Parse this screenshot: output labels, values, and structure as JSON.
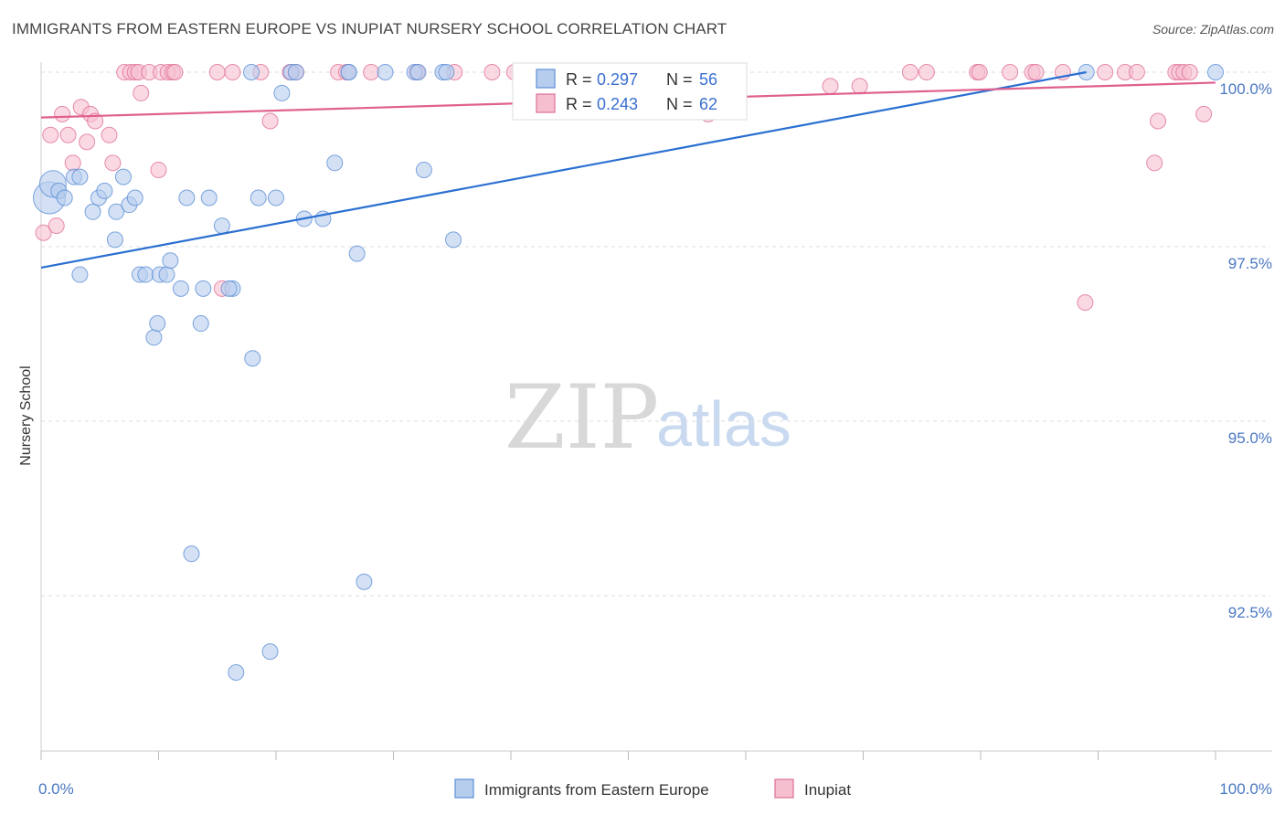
{
  "title": "IMMIGRANTS FROM EASTERN EUROPE VS INUPIAT NURSERY SCHOOL CORRELATION CHART",
  "source": "Source: ZipAtlas.com",
  "watermark": {
    "zip": "ZIP",
    "atlas": "atlas"
  },
  "colors": {
    "blue": "#5b8fd6",
    "blue_fill": "#b7cdee",
    "blue_line": "#2a6fd1",
    "pink": "#e07097",
    "pink_fill": "#f6bfd0",
    "pink_line": "#e0608e",
    "grid": "#dddddd",
    "axis_text": "#4a78c2"
  },
  "stats": [
    {
      "r_label": "R =",
      "r_value": "0.297",
      "n_label": "N =",
      "n_value": "56"
    },
    {
      "r_label": "R =",
      "r_value": "0.243",
      "n_label": "N =",
      "n_value": "62"
    }
  ],
  "chart_data": {
    "type": "scatter",
    "xlabel": "",
    "ylabel": "Nursery School",
    "xlim": [
      0,
      100
    ],
    "ylim": [
      91,
      100.4
    ],
    "x_tick_labels": [
      "0.0%",
      "100.0%"
    ],
    "y_ticks": [
      100.0,
      97.5,
      95.0,
      92.5
    ],
    "y_tick_labels": [
      "100.0%",
      "97.5%",
      "95.0%",
      "92.5%"
    ],
    "grid": true,
    "legend_position": "bottom",
    "series": [
      {
        "name": "Immigrants from Eastern Europe",
        "trendline": {
          "x": [
            0,
            89
          ],
          "y": [
            97.2,
            100.0
          ]
        },
        "points": [
          {
            "x": 0.7,
            "y": 98.2,
            "s": 3
          },
          {
            "x": 1.0,
            "y": 98.4,
            "s": 2
          },
          {
            "x": 1.5,
            "y": 98.3
          },
          {
            "x": 2.0,
            "y": 98.2
          },
          {
            "x": 2.8,
            "y": 98.5
          },
          {
            "x": 3.3,
            "y": 98.5
          },
          {
            "x": 4.4,
            "y": 98.0
          },
          {
            "x": 4.9,
            "y": 98.2
          },
          {
            "x": 5.4,
            "y": 98.3
          },
          {
            "x": 6.3,
            "y": 97.6
          },
          {
            "x": 6.4,
            "y": 98.0
          },
          {
            "x": 7.0,
            "y": 98.5
          },
          {
            "x": 7.5,
            "y": 98.1
          },
          {
            "x": 8.0,
            "y": 98.2
          },
          {
            "x": 3.3,
            "y": 97.1
          },
          {
            "x": 8.4,
            "y": 97.1
          },
          {
            "x": 8.9,
            "y": 97.1
          },
          {
            "x": 10.1,
            "y": 97.1
          },
          {
            "x": 10.7,
            "y": 97.1
          },
          {
            "x": 11.0,
            "y": 97.3
          },
          {
            "x": 11.9,
            "y": 96.9
          },
          {
            "x": 9.6,
            "y": 96.2
          },
          {
            "x": 9.9,
            "y": 96.4
          },
          {
            "x": 12.4,
            "y": 98.2
          },
          {
            "x": 13.6,
            "y": 96.4
          },
          {
            "x": 13.8,
            "y": 96.9
          },
          {
            "x": 14.3,
            "y": 98.2
          },
          {
            "x": 15.4,
            "y": 97.8
          },
          {
            "x": 16.3,
            "y": 96.9
          },
          {
            "x": 16.0,
            "y": 96.9
          },
          {
            "x": 18.0,
            "y": 95.9
          },
          {
            "x": 18.5,
            "y": 98.2
          },
          {
            "x": 20.0,
            "y": 98.2
          },
          {
            "x": 22.4,
            "y": 97.9
          },
          {
            "x": 24.0,
            "y": 97.9
          },
          {
            "x": 25.0,
            "y": 98.7
          },
          {
            "x": 26.9,
            "y": 97.4
          },
          {
            "x": 27.5,
            "y": 92.7
          },
          {
            "x": 12.8,
            "y": 93.1
          },
          {
            "x": 16.6,
            "y": 91.4
          },
          {
            "x": 19.5,
            "y": 91.7
          },
          {
            "x": 32.6,
            "y": 98.6
          },
          {
            "x": 35.1,
            "y": 97.6
          },
          {
            "x": 17.9,
            "y": 100.0
          },
          {
            "x": 20.5,
            "y": 99.7
          },
          {
            "x": 21.3,
            "y": 100.0
          },
          {
            "x": 21.7,
            "y": 100.0
          },
          {
            "x": 26.2,
            "y": 100.0
          },
          {
            "x": 26.2,
            "y": 100.0
          },
          {
            "x": 29.3,
            "y": 100.0
          },
          {
            "x": 31.8,
            "y": 100.0
          },
          {
            "x": 32.1,
            "y": 100.0
          },
          {
            "x": 34.2,
            "y": 100.0
          },
          {
            "x": 34.5,
            "y": 100.0
          },
          {
            "x": 89.0,
            "y": 100.0
          },
          {
            "x": 100.0,
            "y": 100.0
          }
        ]
      },
      {
        "name": "Inupiat",
        "trendline": {
          "x": [
            0,
            100
          ],
          "y": [
            99.35,
            99.85
          ]
        },
        "points": [
          {
            "x": 0.2,
            "y": 97.7
          },
          {
            "x": 1.3,
            "y": 97.8
          },
          {
            "x": 0.8,
            "y": 99.1
          },
          {
            "x": 1.8,
            "y": 99.4
          },
          {
            "x": 2.3,
            "y": 99.1
          },
          {
            "x": 2.7,
            "y": 98.7
          },
          {
            "x": 3.4,
            "y": 99.5
          },
          {
            "x": 3.9,
            "y": 99.0
          },
          {
            "x": 4.2,
            "y": 99.4
          },
          {
            "x": 4.6,
            "y": 99.3
          },
          {
            "x": 5.8,
            "y": 99.1
          },
          {
            "x": 6.1,
            "y": 98.7
          },
          {
            "x": 7.1,
            "y": 100.0
          },
          {
            "x": 7.6,
            "y": 100.0
          },
          {
            "x": 8.0,
            "y": 100.0
          },
          {
            "x": 8.3,
            "y": 100.0
          },
          {
            "x": 8.5,
            "y": 99.7
          },
          {
            "x": 9.2,
            "y": 100.0
          },
          {
            "x": 10.0,
            "y": 98.6
          },
          {
            "x": 10.2,
            "y": 100.0
          },
          {
            "x": 10.8,
            "y": 100.0
          },
          {
            "x": 11.2,
            "y": 100.0
          },
          {
            "x": 11.4,
            "y": 100.0
          },
          {
            "x": 15.0,
            "y": 100.0
          },
          {
            "x": 15.4,
            "y": 96.9
          },
          {
            "x": 16.3,
            "y": 100.0
          },
          {
            "x": 18.7,
            "y": 100.0
          },
          {
            "x": 19.5,
            "y": 99.3
          },
          {
            "x": 21.2,
            "y": 100.0
          },
          {
            "x": 21.7,
            "y": 100.0
          },
          {
            "x": 25.3,
            "y": 100.0
          },
          {
            "x": 26.0,
            "y": 100.0
          },
          {
            "x": 28.1,
            "y": 100.0
          },
          {
            "x": 32.0,
            "y": 100.0
          },
          {
            "x": 35.2,
            "y": 100.0
          },
          {
            "x": 38.4,
            "y": 100.0
          },
          {
            "x": 40.3,
            "y": 100.0
          },
          {
            "x": 44.2,
            "y": 100.0
          },
          {
            "x": 47.5,
            "y": 100.0
          },
          {
            "x": 56.8,
            "y": 99.4
          },
          {
            "x": 58.7,
            "y": 100.0
          },
          {
            "x": 67.2,
            "y": 99.8
          },
          {
            "x": 69.7,
            "y": 99.8
          },
          {
            "x": 74.0,
            "y": 100.0
          },
          {
            "x": 75.4,
            "y": 100.0
          },
          {
            "x": 79.7,
            "y": 100.0
          },
          {
            "x": 79.9,
            "y": 100.0
          },
          {
            "x": 82.5,
            "y": 100.0
          },
          {
            "x": 84.4,
            "y": 100.0
          },
          {
            "x": 84.7,
            "y": 100.0
          },
          {
            "x": 87.0,
            "y": 100.0
          },
          {
            "x": 88.9,
            "y": 96.7
          },
          {
            "x": 90.6,
            "y": 100.0
          },
          {
            "x": 92.3,
            "y": 100.0
          },
          {
            "x": 93.3,
            "y": 100.0
          },
          {
            "x": 94.8,
            "y": 98.7
          },
          {
            "x": 95.1,
            "y": 99.3
          },
          {
            "x": 96.6,
            "y": 100.0
          },
          {
            "x": 96.9,
            "y": 100.0
          },
          {
            "x": 97.3,
            "y": 100.0
          },
          {
            "x": 97.8,
            "y": 100.0
          },
          {
            "x": 99.0,
            "y": 99.4
          }
        ]
      }
    ]
  }
}
